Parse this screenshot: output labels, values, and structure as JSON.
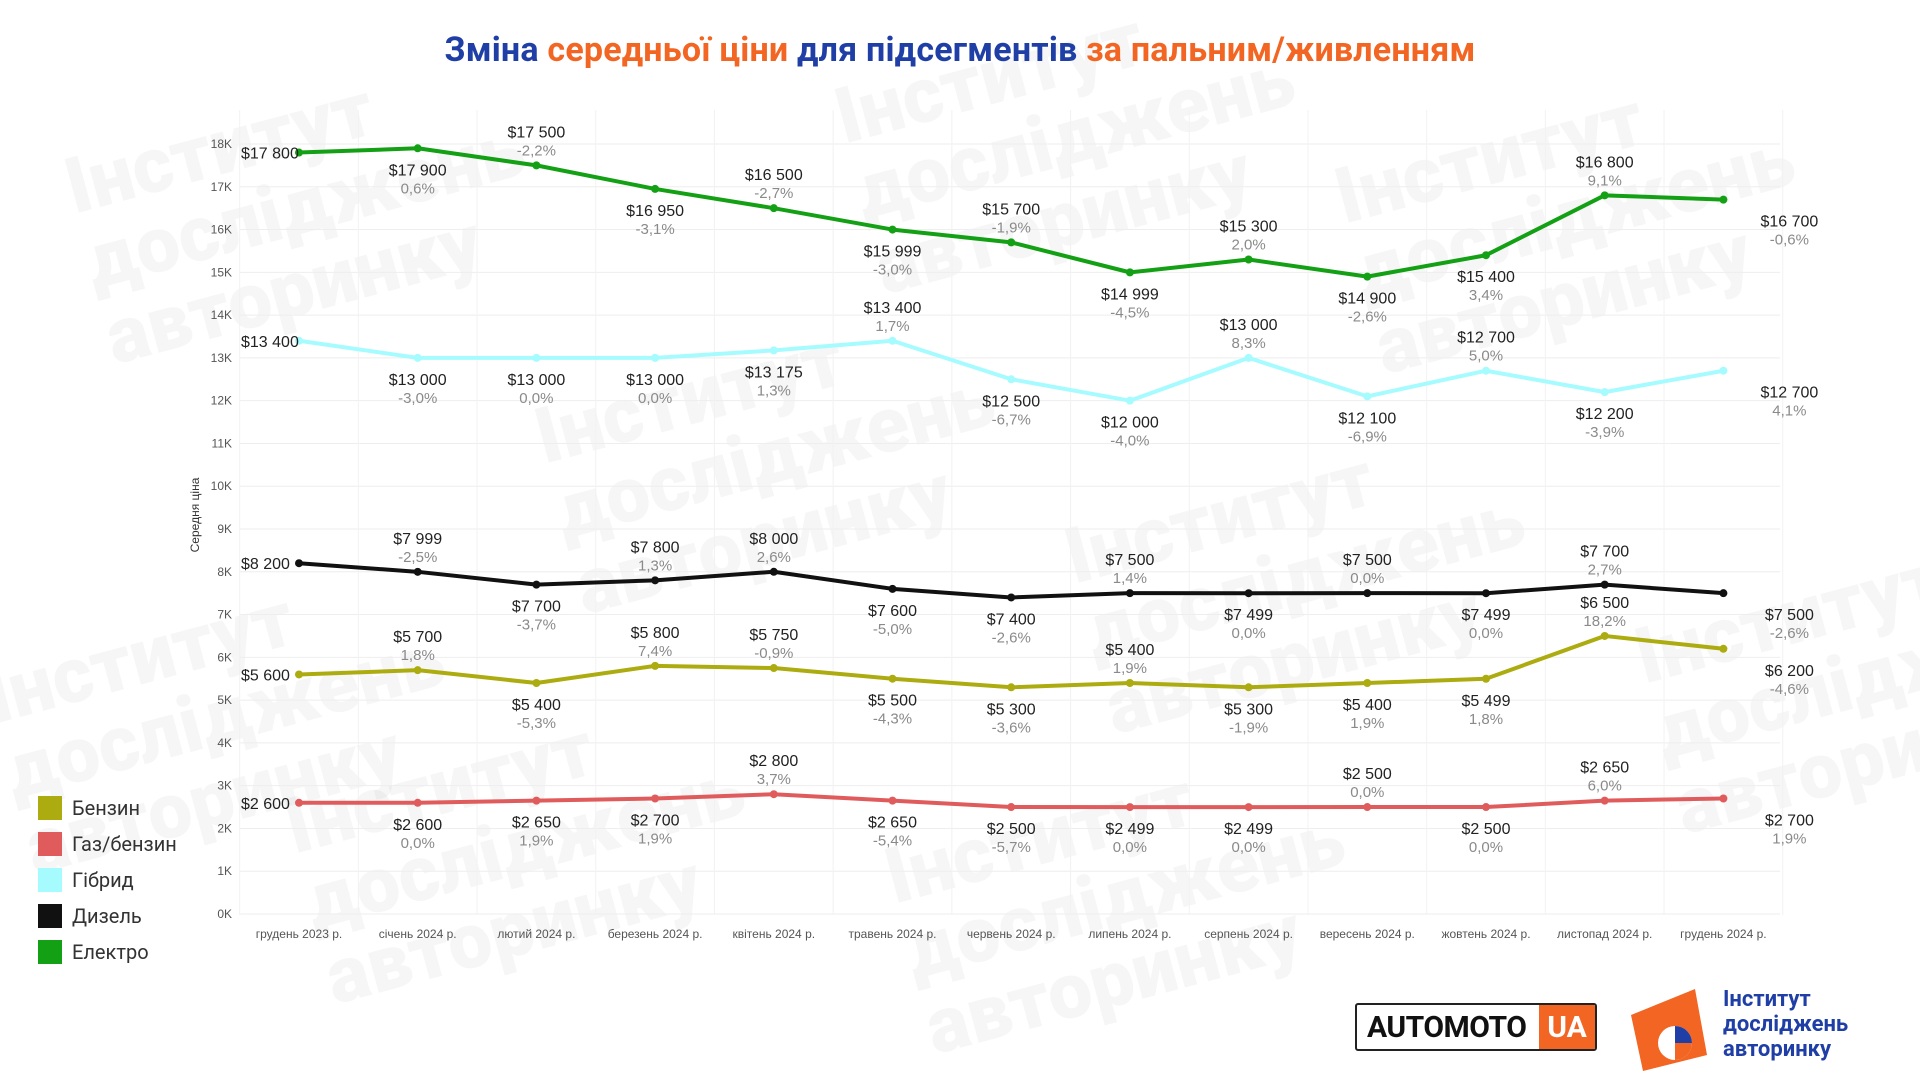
{
  "title": {
    "part1": "Зміна ",
    "part2": "середньої ціни",
    "part3": " для підсегментів ",
    "part4": "за пальним/живленням"
  },
  "chart_data": {
    "type": "line",
    "title": "Зміна середньої ціни для підсегментів за пальним/живленням",
    "ylabel": "Середня ціна",
    "xlabel": "",
    "ylim": [
      0,
      18000
    ],
    "yticks": [
      0,
      1000,
      2000,
      3000,
      4000,
      5000,
      6000,
      7000,
      8000,
      9000,
      10000,
      11000,
      12000,
      13000,
      14000,
      15000,
      16000,
      17000,
      18000
    ],
    "ytick_labels": [
      "0K",
      "1K",
      "2K",
      "3K",
      "4K",
      "5K",
      "6K",
      "7K",
      "8K",
      "9K",
      "10K",
      "11K",
      "12K",
      "13K",
      "14K",
      "15K",
      "16K",
      "17K",
      "18K"
    ],
    "grid": true,
    "legend_position": "bottom-left",
    "categories": [
      "грудень 2023 р.",
      "січень 2024 р.",
      "лютий 2024 р.",
      "березень 2024 р.",
      "квітень 2024 р.",
      "травень 2024 р.",
      "червень 2024 р.",
      "липень 2024 р.",
      "серпень 2024 р.",
      "вересень 2024 р.",
      "жовтень 2024 р.",
      "листопад 2024 р.",
      "грудень 2024 р."
    ],
    "series": [
      {
        "name": "Електро",
        "color": "#14a014",
        "values": [
          17800,
          17900,
          17500,
          16950,
          16500,
          15999,
          15700,
          14999,
          15300,
          14900,
          15400,
          16800,
          16700
        ],
        "labels": [
          "$17 800",
          "$17 900",
          "$17 500",
          "$16 950",
          "$16 500",
          "$15 999",
          "$15 700",
          "$14 999",
          "$15 300",
          "$14 900",
          "$15 400",
          "$16 800",
          "$16 700"
        ],
        "changes": [
          "",
          "0,6%",
          "-2,2%",
          "-3,1%",
          "-2,7%",
          "-3,0%",
          "-1,9%",
          "-4,5%",
          "2,0%",
          "-2,6%",
          "3,4%",
          "9,1%",
          "-0,6%"
        ]
      },
      {
        "name": "Гібрид",
        "color": "#a6fbff",
        "values": [
          13400,
          13000,
          13000,
          13000,
          13175,
          13400,
          12500,
          12000,
          13000,
          12100,
          12700,
          12200,
          12700
        ],
        "labels": [
          "$13 400",
          "$13 000",
          "$13 000",
          "$13 000",
          "$13 175",
          "$13 400",
          "$12 500",
          "$12 000",
          "$13 000",
          "$12 100",
          "$12 700",
          "$12 200",
          "$12 700"
        ],
        "changes": [
          "",
          "-3,0%",
          "0,0%",
          "0,0%",
          "1,3%",
          "1,7%",
          "-6,7%",
          "-4,0%",
          "8,3%",
          "-6,9%",
          "5,0%",
          "-3,9%",
          "4,1%"
        ]
      },
      {
        "name": "Дизель",
        "color": "#111111",
        "values": [
          8200,
          7999,
          7700,
          7800,
          8000,
          7600,
          7400,
          7500,
          7499,
          7500,
          7499,
          7700,
          7500
        ],
        "labels": [
          "$8 200",
          "$7 999",
          "$7 700",
          "$7 800",
          "$8 000",
          "$7 600",
          "$7 400",
          "$7 500",
          "$7 499",
          "$7 500",
          "$7 499",
          "$7 700",
          "$7 500"
        ],
        "changes": [
          "",
          "-2,5%",
          "-3,7%",
          "1,3%",
          "2,6%",
          "-5,0%",
          "-2,6%",
          "1,4%",
          "0,0%",
          "0,0%",
          "0,0%",
          "2,7%",
          "-2,6%"
        ]
      },
      {
        "name": "Бензин",
        "color": "#acac10",
        "values": [
          5600,
          5700,
          5400,
          5800,
          5750,
          5500,
          5300,
          5400,
          5300,
          5400,
          5499,
          6500,
          6200
        ],
        "labels": [
          "$5 600",
          "$5 700",
          "$5 400",
          "$5 800",
          "$5 750",
          "$5 500",
          "$5 300",
          "$5 400",
          "$5 300",
          "$5 400",
          "$5 499",
          "$6 500",
          "$6 200"
        ],
        "changes": [
          "",
          "1,8%",
          "-5,3%",
          "7,4%",
          "-0,9%",
          "-4,3%",
          "-3,6%",
          "1,9%",
          "-1,9%",
          "1,9%",
          "1,8%",
          "18,2%",
          "-4,6%"
        ]
      },
      {
        "name": "Газ/бензин",
        "color": "#e05c5c",
        "values": [
          2600,
          2600,
          2650,
          2700,
          2800,
          2650,
          2500,
          2499,
          2499,
          2500,
          2500,
          2650,
          2700
        ],
        "labels": [
          "$2 600",
          "$2 600",
          "$2 650",
          "$2 700",
          "$2 800",
          "$2 650",
          "$2 500",
          "$2 499",
          "$2 499",
          "$2 500",
          "$2 500",
          "$2 650",
          "$2 700"
        ],
        "changes": [
          "",
          "0,0%",
          "1,9%",
          "1,9%",
          "3,7%",
          "-5,4%",
          "-5,7%",
          "0,0%",
          "0,0%",
          "0,0%",
          "0,0%",
          "6,0%",
          "1,9%"
        ]
      }
    ],
    "legend": [
      {
        "name": "Бензин",
        "color": "#acac10"
      },
      {
        "name": "Газ/бензин",
        "color": "#e05c5c"
      },
      {
        "name": "Гібрид",
        "color": "#a6fbff"
      },
      {
        "name": "Дизель",
        "color": "#111111"
      },
      {
        "name": "Електро",
        "color": "#14a014"
      }
    ]
  },
  "logos": {
    "automoto_main": "AUTOMOTO",
    "automoto_ua": "UA",
    "institute_line1": "Інститут",
    "institute_line2": "досліджень",
    "institute_line3": "авторинку"
  },
  "watermark_text": [
    "Інститут",
    "досліджень",
    "авторинку"
  ]
}
